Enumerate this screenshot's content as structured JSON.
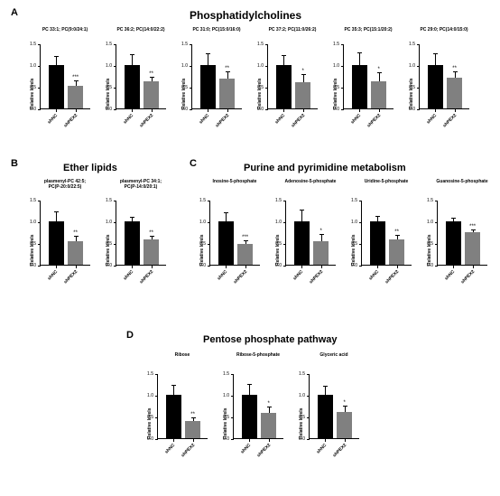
{
  "colors": {
    "bar1": "#000000",
    "bar2": "#808080",
    "bg": "#ffffff",
    "axis": "#000000"
  },
  "fonts": {
    "panel_label": 11,
    "section_title_lg": 12,
    "section_title_md": 11,
    "chart_title": 5,
    "y_label": 5,
    "x_label": 5,
    "tick_label": 5
  },
  "x_groups": [
    "shNC",
    "shPEX2"
  ],
  "y_label_text": "Relative levels",
  "panelA": {
    "label": "A",
    "title": "Phosphatidylcholines",
    "charts": [
      {
        "title": "PC 33:1; PC(9:0/24:1)",
        "v": [
          1.0,
          0.52
        ],
        "e": [
          0.18,
          0.1
        ],
        "sig": "***"
      },
      {
        "title": "PC 36:2; PC(14:0/22:2)",
        "v": [
          1.0,
          0.62
        ],
        "e": [
          0.22,
          0.08
        ],
        "sig": "**"
      },
      {
        "title": "PC 31:0; PC(15:0/16:0)",
        "v": [
          1.0,
          0.68
        ],
        "e": [
          0.24,
          0.15
        ],
        "sig": "**"
      },
      {
        "title": "PC 37:2; PC(11:0/26:2)",
        "v": [
          1.0,
          0.6
        ],
        "e": [
          0.2,
          0.18
        ],
        "sig": "*"
      },
      {
        "title": "PC 35:3; PC(15:1/20:2)",
        "v": [
          1.0,
          0.62
        ],
        "e": [
          0.28,
          0.2
        ],
        "sig": "*"
      },
      {
        "title": "PC 29:0; PC(14:0/15:0)",
        "v": [
          1.0,
          0.7
        ],
        "e": [
          0.24,
          0.14
        ],
        "sig": "**"
      }
    ]
  },
  "panelB": {
    "label": "B",
    "title": "Ether lipids",
    "charts": [
      {
        "title": "plasmenyl-PC 42:5;\nPC(P-20:0/22:5)",
        "v": [
          1.0,
          0.55
        ],
        "e": [
          0.2,
          0.1
        ],
        "sig": "**"
      },
      {
        "title": "plasmenyl-PC 34:1;\nPC(P-14:0/20:1)",
        "v": [
          1.0,
          0.58
        ],
        "e": [
          0.08,
          0.06
        ],
        "sig": "**"
      }
    ]
  },
  "panelC": {
    "label": "C",
    "title": "Purine and pyrimidine metabolism",
    "charts": [
      {
        "title": "Inosine-5-phosphate",
        "v": [
          1.0,
          0.48
        ],
        "e": [
          0.18,
          0.06
        ],
        "sig": "***"
      },
      {
        "title": "Adenosine-5-phosphate",
        "v": [
          1.0,
          0.55
        ],
        "e": [
          0.24,
          0.14
        ],
        "sig": "*"
      },
      {
        "title": "Uridine-5-phosphate",
        "v": [
          1.0,
          0.58
        ],
        "e": [
          0.1,
          0.08
        ],
        "sig": "**"
      },
      {
        "title": "Guanosine-5-phosphate",
        "v": [
          1.0,
          0.75
        ],
        "e": [
          0.06,
          0.05
        ],
        "sig": "***"
      }
    ]
  },
  "panelD": {
    "label": "D",
    "title": "Pentose phosphate pathway",
    "charts": [
      {
        "title": "Ribose",
        "v": [
          1.0,
          0.4
        ],
        "e": [
          0.2,
          0.06
        ],
        "sig": "**"
      },
      {
        "title": "Ribose-5-phosphate",
        "v": [
          1.0,
          0.58
        ],
        "e": [
          0.22,
          0.12
        ],
        "sig": "*"
      },
      {
        "title": "Glyceric acid",
        "v": [
          1.0,
          0.6
        ],
        "e": [
          0.18,
          0.12
        ],
        "sig": "*"
      }
    ]
  },
  "y_axis": {
    "min": 0,
    "max": 1.5,
    "ticks": [
      0.0,
      0.5,
      1.0,
      1.5
    ]
  }
}
